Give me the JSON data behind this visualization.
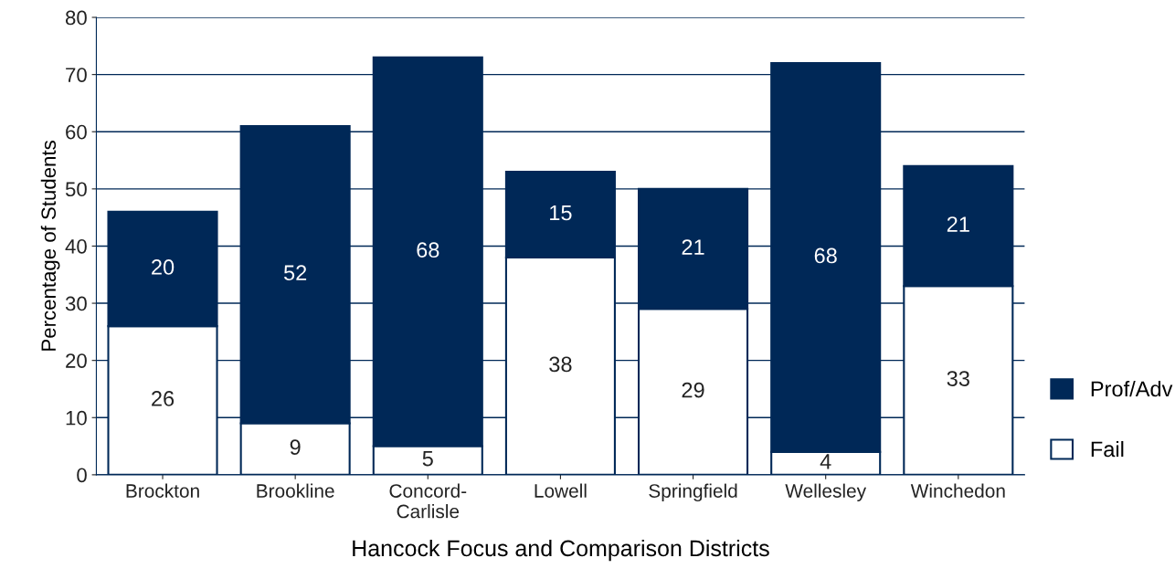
{
  "chart_data": {
    "type": "bar",
    "stacked": true,
    "xlabel": "Hancock Focus and Comparison Districts",
    "ylabel": "Percentage of Students",
    "categories": [
      "Brockton",
      "Brookline",
      "Concord-Carlisle",
      "Lowell",
      "Springfield",
      "Wellesley",
      "Winchedon"
    ],
    "series": [
      {
        "name": "Fail",
        "color": "#ffffff",
        "values": [
          26,
          9,
          5,
          38,
          29,
          4,
          33
        ]
      },
      {
        "name": "Prof/Adv",
        "color": "#002857",
        "values": [
          20,
          52,
          68,
          15,
          21,
          68,
          21
        ]
      }
    ],
    "ylim": [
      0,
      80
    ],
    "yticks": [
      0,
      10,
      20,
      30,
      40,
      50,
      60,
      70,
      80
    ],
    "grid": "y",
    "legend": "bottom right",
    "data_labels": true
  }
}
